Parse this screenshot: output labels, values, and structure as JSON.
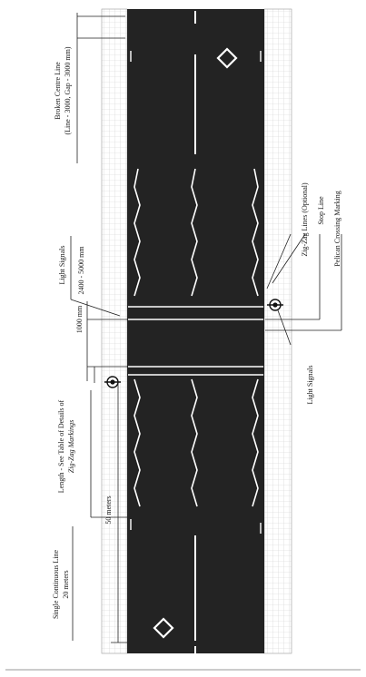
{
  "labels": {
    "broken_centre_line_1": "Broken Centre Line",
    "broken_centre_line_2": "(Line - 3000, Gap - 3000 mm)",
    "light_signals_top": "Light Signals",
    "dim_1000": "1000 mm",
    "dim_2400_5000": "2400 - 5000 mm",
    "zigzag_optional": "Zig-Zag Lines (Optional)",
    "stop_line": "Stop Line",
    "pelican_crossing": "Pelican Crossing Marking",
    "light_signals_bottom": "Light Signals",
    "length_1": "Length - See Table of Details of",
    "length_2": "Zig-Zag Markings",
    "fifty_meters": "50 meters",
    "single_continuous_1": "Single Continuous Line",
    "single_continuous_2": "20 meters"
  },
  "colors": {
    "road": "#232323",
    "marking": "#ffffff",
    "grid": "#cfcfcf",
    "ink": "#1a1a1a"
  },
  "icons": {
    "signal_symbol": "traffic-signal-icon",
    "diamond_marking": "diamond-marking-icon"
  }
}
